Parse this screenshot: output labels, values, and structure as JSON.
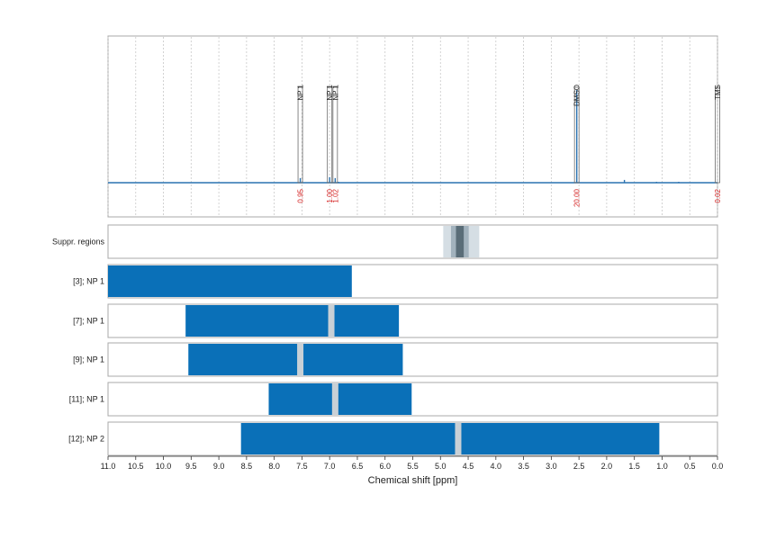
{
  "chart_data": [
    {
      "type": "line",
      "title": "",
      "xlabel": "",
      "ylabel": "",
      "x_reversed": true,
      "xlim": [
        11.0,
        0.0
      ],
      "grid": true,
      "peak_annotations": [
        {
          "label": "NP 1",
          "ppm": 7.53,
          "integral": "0.95"
        },
        {
          "label": "NP 1",
          "ppm": 7.0,
          "integral": "1.00"
        },
        {
          "label": "NP 1",
          "ppm": 6.9,
          "integral": "1.02"
        },
        {
          "label": "DMSO",
          "ppm": 2.54,
          "integral": "20.00"
        },
        {
          "label": "TMS",
          "ppm": 0.0,
          "integral": "0.02"
        }
      ],
      "peaks": [
        {
          "ppm": 7.53,
          "height": 0.05
        },
        {
          "ppm": 7.0,
          "height": 0.06
        },
        {
          "ppm": 6.9,
          "height": 0.05
        },
        {
          "ppm": 6.84,
          "height": 0.01
        },
        {
          "ppm": 2.54,
          "height": 1.0
        },
        {
          "ppm": 1.68,
          "height": 0.03
        },
        {
          "ppm": 1.1,
          "height": 0.01
        },
        {
          "ppm": 0.7,
          "height": 0.01
        }
      ]
    },
    {
      "type": "bar",
      "orientation": "horizontal",
      "xlabel": "Chemical shift [ppm]",
      "xlim": [
        11.0,
        0.0
      ],
      "x_reversed": true,
      "x_ticks": [
        "11.0",
        "10.5",
        "10.0",
        "9.5",
        "9.0",
        "8.5",
        "8.0",
        "7.5",
        "7.0",
        "6.5",
        "6.0",
        "5.5",
        "5.0",
        "4.5",
        "4.0",
        "3.5",
        "3.0",
        "2.5",
        "2.0",
        "1.5",
        "1.0",
        "0.5",
        "0.0"
      ],
      "suppression": {
        "label": "Suppr. regions",
        "outer": [
          4.95,
          4.3
        ],
        "inner": [
          4.72,
          4.58
        ]
      },
      "series": [
        {
          "name": "[3]; NP 1",
          "start": 11.0,
          "end": 6.6,
          "gaps": []
        },
        {
          "name": "[7]; NP 1",
          "start": 9.6,
          "end": 5.75,
          "gaps": [
            6.97
          ]
        },
        {
          "name": "[9]; NP 1",
          "start": 9.55,
          "end": 5.68,
          "gaps": [
            7.53
          ]
        },
        {
          "name": "[11]; NP 1",
          "start": 8.1,
          "end": 5.52,
          "gaps": [
            6.9
          ]
        },
        {
          "name": "[12]; NP 2",
          "start": 8.6,
          "end": 1.05,
          "gaps": [
            4.68
          ]
        }
      ]
    }
  ],
  "colors": {
    "bar": "#0a70b8",
    "spectrum": "#2a72b0",
    "gap": "#c8d0d6",
    "frame": "#a8a8a8",
    "integral": "#d42020",
    "grid": "#c8c8c8",
    "suppr_outer": "#d5dee4",
    "suppr_mid": "#a2b2bd",
    "suppr_inner": "#5a6d78"
  }
}
